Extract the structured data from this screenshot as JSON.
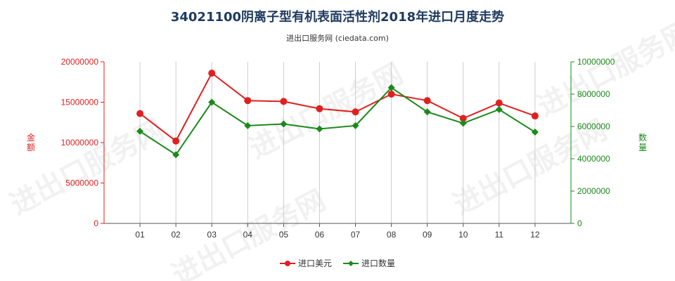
{
  "chart_data": {
    "type": "line",
    "title": "34021100阴离子型有机表面活性剂2018年进口月度走势",
    "subtitle": "进出口服务网 (ciedata.com)",
    "categories": [
      "01",
      "02",
      "03",
      "04",
      "05",
      "06",
      "07",
      "08",
      "09",
      "10",
      "11",
      "12"
    ],
    "series": [
      {
        "name": "进口美元",
        "axis": "left",
        "color": "#e02020",
        "values": [
          13600000,
          10200000,
          18600000,
          15200000,
          15100000,
          14200000,
          13800000,
          16000000,
          15200000,
          13000000,
          14900000,
          13300000
        ]
      },
      {
        "name": "进口数量",
        "axis": "right",
        "color": "#1a8a1a",
        "values": [
          5700000,
          4250000,
          7500000,
          6050000,
          6150000,
          5850000,
          6050000,
          8400000,
          6900000,
          6200000,
          7050000,
          5650000
        ]
      }
    ],
    "y_left": {
      "label": "金额",
      "ticks": [
        0,
        5000000,
        10000000,
        15000000,
        20000000
      ],
      "tick_labels": [
        "0",
        "5000000",
        "10000000",
        "15000000",
        "20000000"
      ],
      "ylim": [
        0,
        20000000
      ],
      "color": "#e02020"
    },
    "y_right": {
      "label": "数量",
      "ticks": [
        0,
        2000000,
        4000000,
        6000000,
        8000000,
        10000000
      ],
      "tick_labels": [
        "0",
        "2000000",
        "4000000",
        "6000000",
        "8000000",
        "10000000"
      ],
      "ylim": [
        0,
        10000000
      ],
      "color": "#1a8a1a"
    },
    "grid": "vertical",
    "legend": "bottom",
    "watermark": "进出口服务网"
  }
}
